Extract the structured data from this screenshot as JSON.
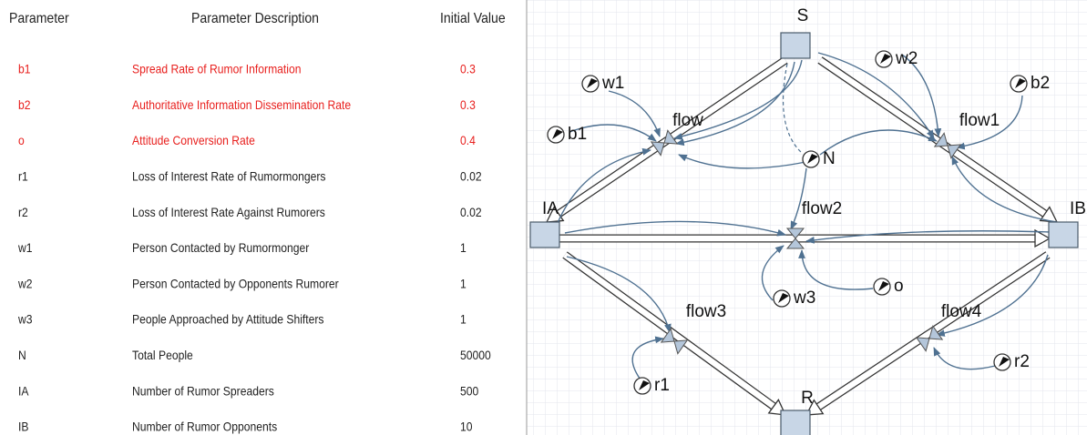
{
  "table": {
    "headers": [
      "Parameter",
      "Parameter Description",
      "Initial Value"
    ],
    "rows": [
      [
        "b1",
        "Spread Rate of Rumor Information",
        "0.3"
      ],
      [
        "b2",
        "Authoritative Information Dissemination Rate",
        "0.3"
      ],
      [
        "o",
        "Attitude Conversion Rate",
        "0.4"
      ],
      [
        "r1",
        "Loss of Interest Rate of Rumormongers",
        "0.02"
      ],
      [
        "r2",
        "Loss of Interest Rate Against Rumorers",
        "0.02"
      ],
      [
        "w1",
        "Person Contacted by Rumormonger",
        "1"
      ],
      [
        "w2",
        "Person Contacted by Opponents Rumorer",
        "1"
      ],
      [
        "w3",
        "People Approached by Attitude Shifters",
        "1"
      ],
      [
        "N",
        "Total People",
        "50000"
      ],
      [
        "IA",
        "Number of Rumor Spreaders",
        "500"
      ],
      [
        "IB",
        "Number of Rumor Opponents",
        "10"
      ]
    ]
  },
  "diagram": {
    "stocks": [
      "S",
      "IA",
      "IB",
      "R"
    ],
    "flows": [
      "flow",
      "flow1",
      "flow2",
      "flow3",
      "flow4"
    ],
    "variables": [
      "w1",
      "b1",
      "w2",
      "b2",
      "N",
      "w3",
      "o",
      "r1",
      "r2"
    ]
  }
}
